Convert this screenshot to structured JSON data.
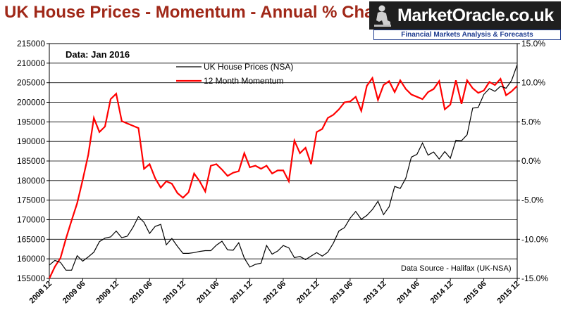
{
  "title": "UK House Prices - Momentum - Annual % Change",
  "logo": {
    "name": "MarketOracle.co.uk",
    "tagline": "Financial Markets Analysis & Forecasts"
  },
  "colors": {
    "title": "#a02818",
    "house_prices": "#000000",
    "momentum": "#ff0000",
    "logo_sub": "#1d3b8f"
  },
  "chart_data": {
    "type": "line",
    "annotation_top": "Data:  Jan 2016",
    "annotation_bottom": "Data Source - Halifax (UK-NSA)",
    "legend": [
      "UK House Prices (NSA)",
      "12 Month Momentum"
    ],
    "legend_position": "top-center",
    "grid": "horizontal",
    "y_left": {
      "ylim": [
        155000,
        215000
      ],
      "step": 5000,
      "ticks": [
        "155000",
        "160000",
        "165000",
        "170000",
        "175000",
        "180000",
        "185000",
        "190000",
        "195000",
        "200000",
        "205000",
        "210000",
        "215000"
      ]
    },
    "y_right": {
      "ylim": [
        -15,
        15
      ],
      "step": 5,
      "ticks": [
        "-15.0%",
        "-10.0%",
        "-5.0%",
        "0.0%",
        "5.0%",
        "10.0%",
        "15.0%"
      ]
    },
    "x_ticks": [
      "2008 12",
      "2009 06",
      "2009 12",
      "2010 06",
      "2010 12",
      "2011 06",
      "2011 12",
      "2012 06",
      "2012 12",
      "2013 06",
      "2013 12",
      "2014 06",
      "2014 12",
      "2015 06",
      "2015 12"
    ],
    "x_start": "2008-12",
    "x_end": "2016-01",
    "series": [
      {
        "name": "UK House Prices (NSA)",
        "axis": "left",
        "values": [
          158400,
          159600,
          159100,
          157100,
          157100,
          160800,
          159400,
          160500,
          161700,
          164400,
          165300,
          165600,
          167100,
          165400,
          165800,
          168000,
          170800,
          169300,
          166500,
          168300,
          168800,
          163600,
          165200,
          163200,
          161400,
          161400,
          161600,
          161900,
          162100,
          162100,
          163500,
          164500,
          162300,
          162200,
          164100,
          160200,
          157900,
          158600,
          158900,
          163400,
          161200,
          162000,
          163400,
          162800,
          160300,
          160600,
          159800,
          160700,
          161600,
          160700,
          161700,
          164000,
          167100,
          168000,
          170400,
          172100,
          170100,
          171100,
          172600,
          174700,
          171300,
          173300,
          178500,
          178000,
          180600,
          186000,
          186700,
          189600,
          186500,
          187300,
          185500,
          187400,
          185700,
          190300,
          190200,
          191700,
          198500,
          198700,
          202000,
          203500,
          202800,
          204100,
          203600,
          205600,
          209600
        ]
      },
      {
        "name": "12 Month Momentum",
        "axis": "right",
        "values": [
          -16.2,
          -13.5,
          -12.4,
          -9.9,
          -7.6,
          -5.4,
          -2.4,
          0.8,
          5.5,
          3.7,
          4.4,
          7.9,
          8.6,
          5.1,
          4.8,
          4.5,
          4.2,
          -1.0,
          -0.4,
          -2.2,
          -3.4,
          -2.6,
          -2.9,
          -4.1,
          -4.7,
          -4.0,
          -1.6,
          -2.6,
          -3.9,
          -0.6,
          -0.4,
          -1.1,
          -1.9,
          -1.5,
          -1.3,
          1.0,
          -0.8,
          -0.6,
          -1.0,
          -0.6,
          -1.6,
          -1.2,
          -1.2,
          -2.6,
          2.6,
          1.0,
          1.7,
          -0.4,
          3.7,
          4.1,
          5.5,
          5.9,
          6.6,
          7.5,
          7.6,
          8.2,
          6.4,
          9.6,
          10.6,
          7.8,
          9.7,
          10.2,
          8.8,
          10.3,
          9.2,
          8.5,
          8.2,
          7.9,
          8.8,
          9.2,
          10.2,
          6.6,
          7.2,
          10.3,
          7.3,
          10.3,
          9.3,
          8.7,
          9.0,
          10.1,
          9.7,
          10.5,
          8.4,
          8.9,
          9.6
        ]
      }
    ]
  }
}
